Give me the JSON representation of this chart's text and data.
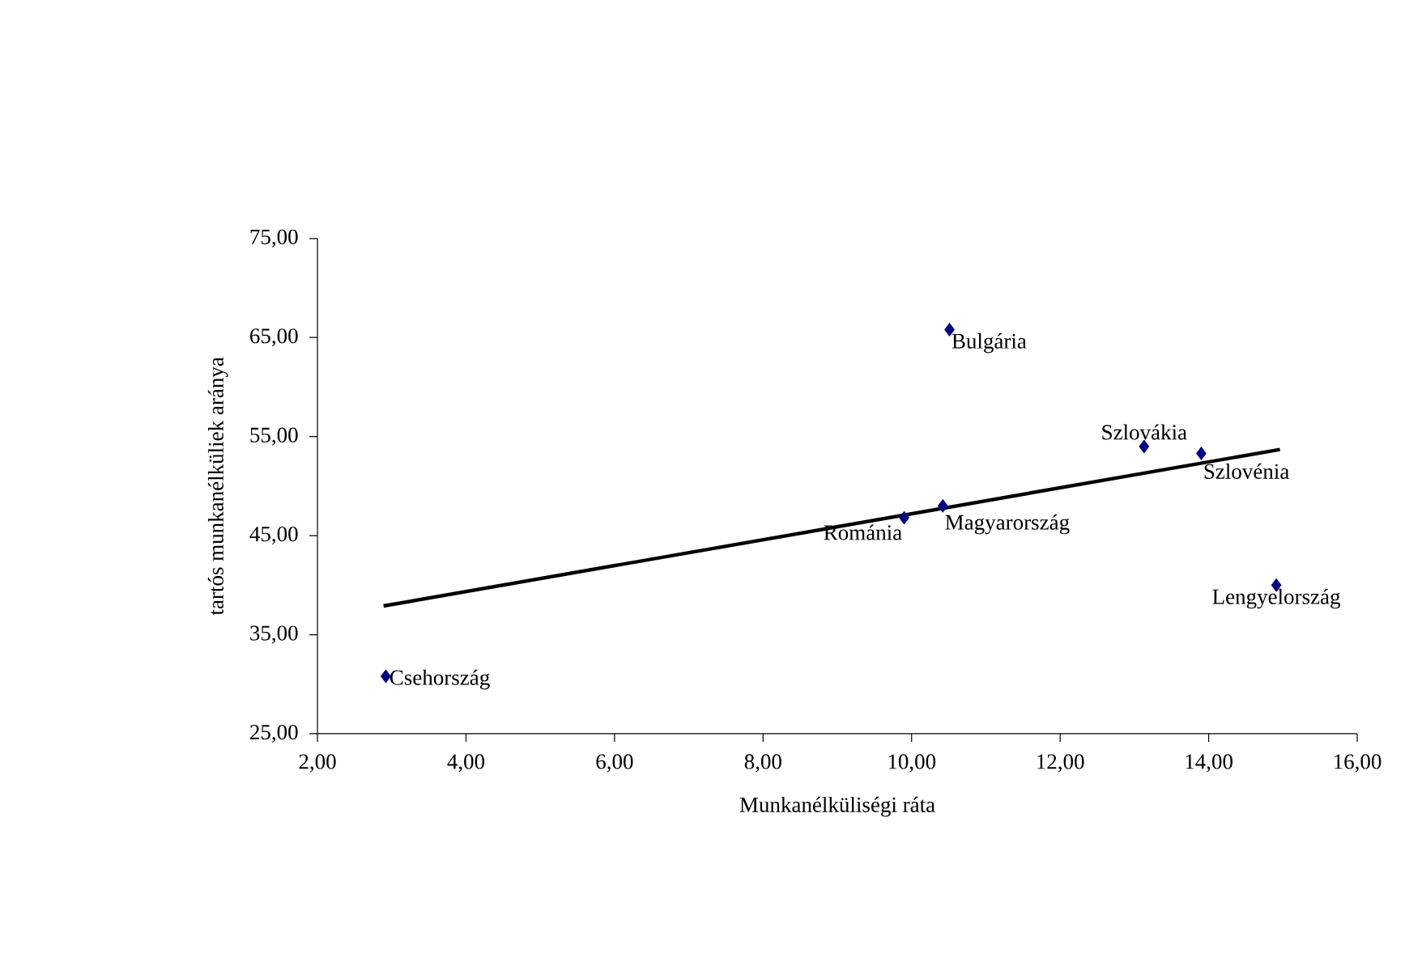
{
  "chart_data": {
    "type": "scatter",
    "xlabel": "Munkanélküliségi ráta",
    "ylabel": "tartós munkanélküliek aránya",
    "xlim": [
      2,
      16
    ],
    "ylim": [
      25,
      75
    ],
    "xticks": [
      {
        "value": 2,
        "label": "2,00"
      },
      {
        "value": 4,
        "label": "4,00"
      },
      {
        "value": 6,
        "label": "6,00"
      },
      {
        "value": 8,
        "label": "8,00"
      },
      {
        "value": 10,
        "label": "10,00"
      },
      {
        "value": 12,
        "label": "12,00"
      },
      {
        "value": 14,
        "label": "14,00"
      },
      {
        "value": 16,
        "label": "16,00"
      }
    ],
    "yticks": [
      {
        "value": 25,
        "label": "25,00"
      },
      {
        "value": 35,
        "label": "35,00"
      },
      {
        "value": 45,
        "label": "45,00"
      },
      {
        "value": 55,
        "label": "55,00"
      },
      {
        "value": 65,
        "label": "65,00"
      },
      {
        "value": 75,
        "label": "75,00"
      }
    ],
    "grid": false,
    "marker": "diamond",
    "series": [
      {
        "color": "#000080",
        "x": [
          2.92,
          10.51,
          9.9,
          10.42,
          13.13,
          13.9,
          14.91
        ],
        "values": [
          30.8,
          65.8,
          46.8,
          48.0,
          54.0,
          53.3,
          40.0
        ]
      },
      {
        "type": "line",
        "color": "#000000",
        "marker": "none",
        "line_style": "solid",
        "x": [
          2.89,
          14.96
        ],
        "values": [
          37.9,
          53.7
        ]
      }
    ],
    "annotations": [
      {
        "text": "Csehország",
        "x": 2.92,
        "y": 30.8
      },
      {
        "text": "Bulgária",
        "x": 10.51,
        "y": 65.8
      },
      {
        "text": "Románia",
        "x": 9.9,
        "y": 46.8
      },
      {
        "text": "Magyarország",
        "x": 10.42,
        "y": 48.0
      },
      {
        "text": "Szlovákia",
        "x": 13.13,
        "y": 54.0
      },
      {
        "text": "Szlovénia",
        "x": 13.9,
        "y": 53.3
      },
      {
        "text": "Lengyelország",
        "x": 14.91,
        "y": 40.0
      }
    ]
  }
}
